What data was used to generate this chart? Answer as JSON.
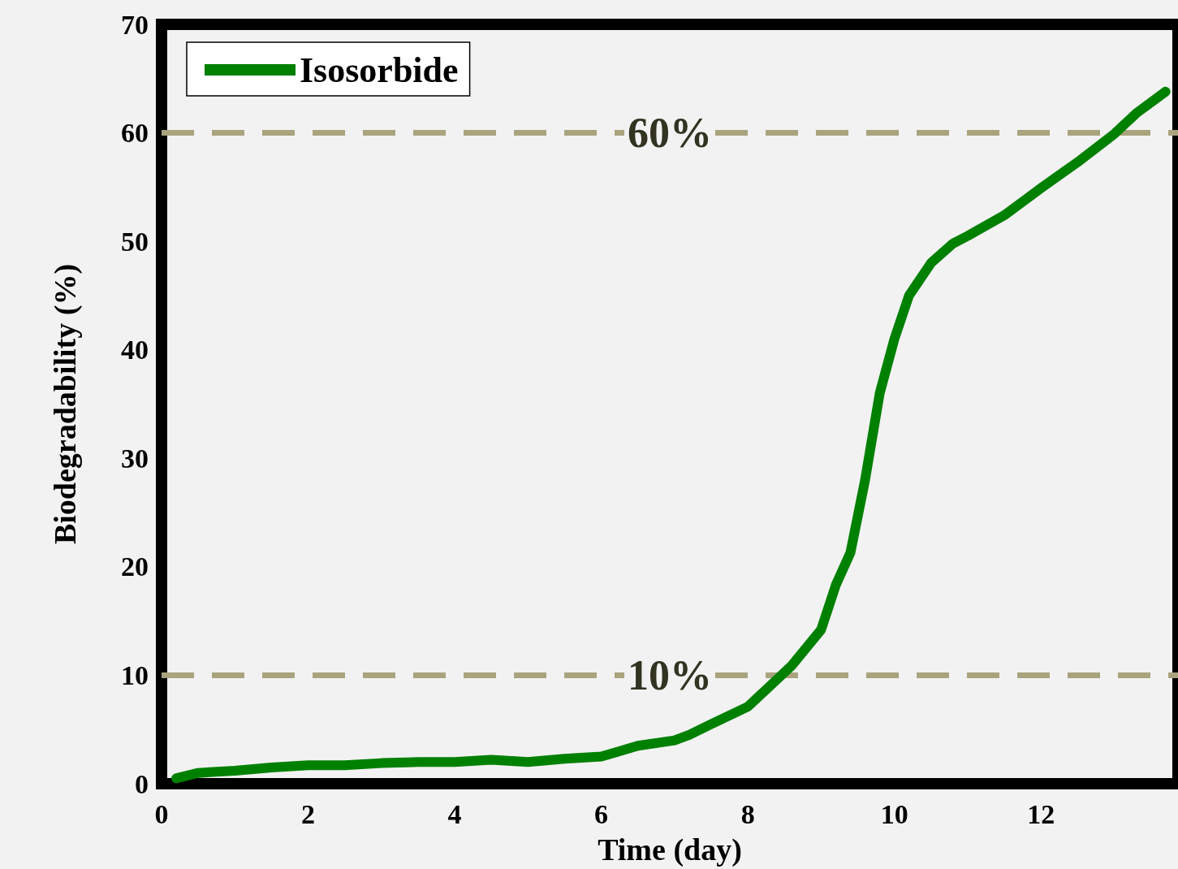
{
  "chart_data": {
    "type": "line",
    "xlabel": "Time (day)",
    "ylabel": "Biodegradability (%)",
    "x": [
      0.2,
      0.5,
      1,
      1.5,
      2,
      2.5,
      3,
      3.5,
      4,
      4.5,
      5,
      5.5,
      6,
      6.5,
      7,
      7.2,
      7.5,
      8,
      8.3,
      8.6,
      9,
      9.2,
      9.4,
      9.6,
      9.8,
      10,
      10.2,
      10.5,
      10.8,
      11,
      11.5,
      12,
      12.5,
      13,
      13.3,
      13.7
    ],
    "series": [
      {
        "name": "Isosorbide",
        "color": "#008000",
        "values": [
          0.5,
          1,
          1.2,
          1.5,
          1.7,
          1.7,
          1.9,
          2,
          2,
          2.2,
          2,
          2.3,
          2.5,
          3.5,
          4,
          4.5,
          5.5,
          7.1,
          9,
          10.9,
          14.2,
          18.3,
          21.3,
          28,
          36,
          41,
          45,
          48,
          49.8,
          50.5,
          52.4,
          54.9,
          57.3,
          59.9,
          61.8,
          63.8
        ]
      }
    ],
    "xlim": [
      0,
      13.87
    ],
    "xticks": [
      0,
      2,
      4,
      6,
      8,
      10,
      12
    ],
    "ylim": [
      0,
      70
    ],
    "yticks": [
      0,
      10,
      20,
      30,
      40,
      50,
      60,
      70
    ],
    "ref_lines": [
      {
        "axis": "y",
        "value": 60,
        "label": "60%",
        "color": "#a9a37e",
        "line_style": "dashed"
      },
      {
        "axis": "y",
        "value": 10,
        "label": "10%",
        "color": "#a9a37e",
        "line_style": "dashed"
      }
    ],
    "legend": "top left",
    "grid": false,
    "line_style": "solid"
  }
}
